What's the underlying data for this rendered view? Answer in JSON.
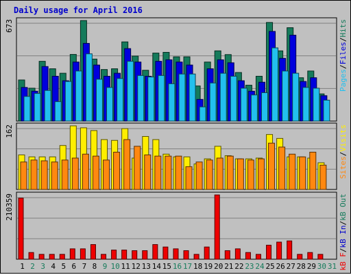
{
  "chart_data": {
    "type": "bar",
    "title": "Daily usage for April 2016",
    "categories": [
      "1",
      "2",
      "3",
      "4",
      "5",
      "6",
      "7",
      "8",
      "9",
      "10",
      "11",
      "12",
      "13",
      "14",
      "15",
      "16",
      "17",
      "18",
      "19",
      "20",
      "21",
      "22",
      "23",
      "24",
      "25",
      "26",
      "27",
      "28",
      "29",
      "30",
      "31"
    ],
    "weekend_days": [
      "2",
      "3",
      "9",
      "10",
      "16",
      "17",
      "23",
      "24",
      "30",
      "31"
    ],
    "colors": {
      "title": "#0000cc",
      "hits": "#157b5b",
      "files": "#0000dd",
      "pages": "#22c0ee",
      "visits": "#ffee00",
      "sites": "#ff8810",
      "kb_f": "#ee0000",
      "kb_in": "#0000cc",
      "kb_out": "#157b5b",
      "weekend_label": "#157b5b",
      "weekday_label": "#000000"
    },
    "panels": [
      {
        "id": "hits",
        "max_label": "673",
        "ylim": [
          0,
          673
        ],
        "legend": [
          "Pages",
          "Files",
          "Hits"
        ],
        "legend_colors": [
          "#22c0ee",
          "#0000dd",
          "#157b5b"
        ],
        "series": [
          {
            "name": "Hits",
            "color": "#157b5b",
            "values": [
              275,
              220,
              400,
              350,
              320,
              446,
              673,
              415,
              345,
              350,
              530,
              435,
              340,
              455,
              460,
              430,
              430,
              235,
              395,
              470,
              445,
              325,
              240,
              300,
              660,
              470,
              625,
              290,
              335,
              182,
              0
            ]
          },
          {
            "name": "Files",
            "color": "#0000dd",
            "values": [
              225,
              200,
              365,
              300,
              270,
              395,
              520,
              375,
              300,
              320,
              485,
              395,
              300,
              400,
              410,
              395,
              375,
              145,
              350,
              410,
              390,
              270,
              200,
              260,
              600,
              420,
              575,
              265,
              290,
              170,
              0
            ]
          },
          {
            "name": "Pages",
            "color": "#22c0ee",
            "values": [
              165,
              185,
              205,
              130,
              265,
              335,
              450,
              280,
              225,
              285,
              400,
              305,
              295,
              305,
              250,
              315,
              315,
              95,
              255,
              320,
              300,
              220,
              175,
              190,
              490,
              335,
              320,
              225,
              220,
              140,
              0
            ]
          }
        ]
      },
      {
        "id": "visits",
        "max_label": "162",
        "ylim": [
          0,
          162
        ],
        "legend": [
          "Sites",
          "Visits"
        ],
        "legend_colors": [
          "#ff8810",
          "#ffee00"
        ],
        "series": [
          {
            "name": "Visits",
            "color": "#ffee00",
            "values": [
              88,
              83,
              83,
              83,
              112,
              162,
              157,
              150,
              127,
              125,
              155,
              80,
              135,
              127,
              90,
              83,
              83,
              65,
              78,
              110,
              86,
              78,
              78,
              80,
              140,
              130,
              83,
              83,
              80,
              68,
              0
            ]
          },
          {
            "name": "Sites",
            "color": "#ff8810",
            "values": [
              70,
              75,
              73,
              70,
              75,
              80,
              90,
              85,
              75,
              95,
              127,
              110,
              88,
              85,
              85,
              85,
              58,
              70,
              75,
              80,
              85,
              78,
              75,
              78,
              118,
              108,
              90,
              83,
              95,
              62,
              0
            ]
          }
        ]
      },
      {
        "id": "kbytes",
        "max_label": "210359",
        "ylim": [
          0,
          210359
        ],
        "legend": [
          "kB F",
          "kB In",
          "kB Out"
        ],
        "legend_colors": [
          "#ee0000",
          "#0000cc",
          "#157b5b"
        ],
        "series": [
          {
            "name": "kB F",
            "color": "#ee0000",
            "values": [
              200000,
              22000,
              16000,
              16000,
              16000,
              34000,
              34000,
              48000,
              16000,
              30000,
              30000,
              28000,
              28000,
              48000,
              40000,
              34000,
              28000,
              16000,
              40000,
              210359,
              28000,
              34000,
              22000,
              16000,
              46000,
              56000,
              60000,
              16000,
              22000,
              16000,
              0
            ]
          }
        ]
      }
    ]
  }
}
